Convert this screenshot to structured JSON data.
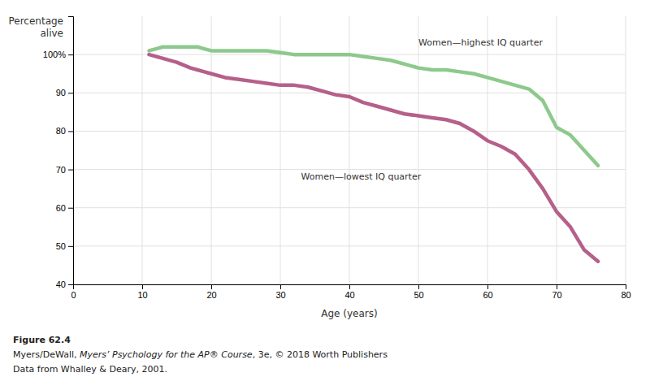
{
  "chart_data": {
    "type": "line",
    "xlabel": "Age (years)",
    "ylabel": "Percentage\nalive",
    "xlim": [
      0,
      80
    ],
    "ylim": [
      40,
      110
    ],
    "xticks": [
      0,
      10,
      20,
      30,
      40,
      50,
      60,
      70,
      80
    ],
    "yticks": [
      40,
      50,
      60,
      70,
      80,
      90,
      {
        "value": 100,
        "label": "100%"
      }
    ],
    "grid": true,
    "series": [
      {
        "color": "#8dc98d",
        "x": [
          11,
          12,
          13,
          14,
          15,
          16,
          17,
          18,
          19,
          20,
          21,
          22,
          24,
          26,
          28,
          30,
          32,
          34,
          36,
          38,
          40,
          42,
          44,
          46,
          48,
          50,
          52,
          54,
          56,
          58,
          60,
          62,
          64,
          66,
          68,
          70,
          72,
          74,
          76
        ],
        "values": [
          101,
          101.5,
          102,
          102,
          102,
          102,
          102,
          102,
          101.5,
          101,
          101,
          101,
          101,
          101,
          101,
          100.5,
          100,
          100,
          100,
          100,
          100,
          99.5,
          99,
          98.5,
          97.5,
          96.5,
          96,
          96,
          95.5,
          95,
          94,
          93,
          92,
          91,
          88,
          81,
          79,
          75,
          71
        ]
      },
      {
        "color": "#b5608a",
        "x": [
          11,
          13,
          15,
          17,
          18,
          19,
          20,
          22,
          24,
          26,
          28,
          30,
          32,
          34,
          36,
          38,
          40,
          42,
          44,
          46,
          48,
          50,
          52,
          54,
          56,
          58,
          60,
          62,
          64,
          66,
          68,
          70,
          72,
          74,
          76
        ],
        "values": [
          100,
          99,
          98,
          96.5,
          96,
          95.5,
          95,
          94,
          93.5,
          93,
          92.5,
          92,
          92,
          91.5,
          90.5,
          89.5,
          89,
          87.5,
          86.5,
          85.5,
          84.5,
          84,
          83.5,
          83,
          82,
          80,
          77.5,
          76,
          74,
          70,
          65,
          59,
          55,
          49,
          46
        ]
      }
    ],
    "annotations": [
      {
        "text": "Women—highest IQ quarter",
        "x": 50,
        "y": 103
      },
      {
        "text": "Women—lowest IQ quarter",
        "x": 33,
        "y": 68
      }
    ],
    "caption": [
      [
        "Figure 62.4"
      ],
      [
        "Myers/DeWall, ",
        "Myers’ Psychology for the AP® Course",
        ", 3e, © 2018 Worth Publishers"
      ],
      [
        "Data from Whalley & Deary, 2001."
      ]
    ]
  }
}
